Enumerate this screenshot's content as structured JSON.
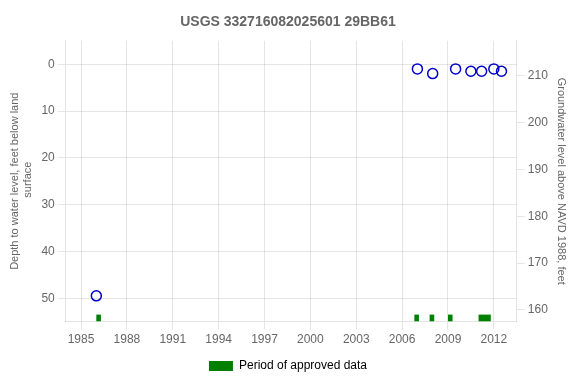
{
  "chart_data": {
    "type": "scatter",
    "title": "USGS 332716082025601 29BB61",
    "ylabel": "Depth to water level, feet below land\n surface",
    "y2label": "Groundwater level above NAVD 1988, feet",
    "xlim": [
      1984,
      2013.5
    ],
    "xticks": [
      1985,
      1988,
      1991,
      1994,
      1997,
      2000,
      2003,
      2006,
      2009,
      2012
    ],
    "ylim": [
      55,
      -5
    ],
    "yticks": [
      0,
      10,
      20,
      30,
      40,
      50
    ],
    "y2lim": [
      157.5,
      217.5
    ],
    "y2ticks": [
      160,
      170,
      180,
      190,
      200,
      210
    ],
    "grid": true,
    "legend": "bottom",
    "series": [
      {
        "type": "scatter",
        "marker": "open_circle",
        "color": "#0000cc",
        "x": [
          1986.0,
          2007.0,
          2008.0,
          2009.5,
          2010.5,
          2011.2,
          2012.0,
          2012.5
        ],
        "values": [
          49.5,
          1.0,
          2.0,
          1.0,
          1.5,
          1.5,
          1.0,
          1.5
        ]
      },
      {
        "name": "Period of approved data",
        "type": "bar",
        "orientation": "horizontal",
        "color": "#008000",
        "start": [
          1986.0,
          2006.8,
          2007.8,
          2009.0,
          2011.0
        ],
        "width": [
          0.3,
          0.3,
          0.3,
          0.3,
          0.8
        ]
      }
    ]
  }
}
